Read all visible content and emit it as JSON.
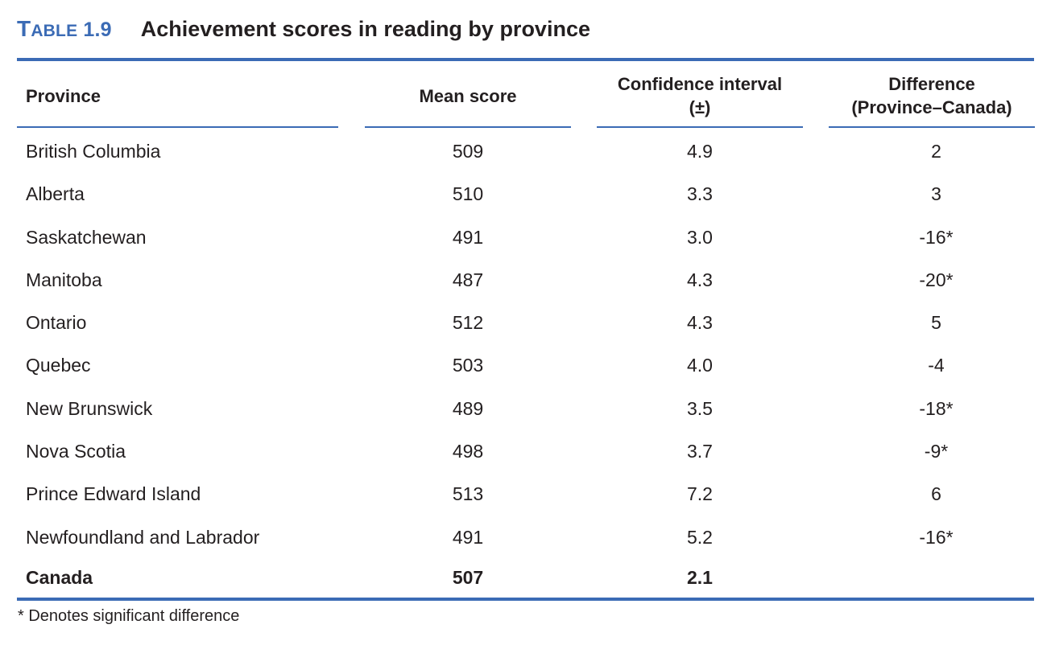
{
  "title": {
    "label_cap": "T",
    "label_rest": "ABLE",
    "number": " 1.9",
    "text": "Achievement scores in reading by province"
  },
  "columns": {
    "province": "Province",
    "mean": "Mean score",
    "ci_line1": "Confidence interval",
    "ci_line2": "(±)",
    "diff_line1": "Difference",
    "diff_line2": "(Province–Canada)"
  },
  "rows": [
    {
      "province": "British Columbia",
      "mean": "509",
      "ci": "4.9",
      "diff": "2"
    },
    {
      "province": "Alberta",
      "mean": "510",
      "ci": "3.3",
      "diff": "3"
    },
    {
      "province": "Saskatchewan",
      "mean": "491",
      "ci": "3.0",
      "diff": "-16*"
    },
    {
      "province": "Manitoba",
      "mean": "487",
      "ci": "4.3",
      "diff": "-20*"
    },
    {
      "province": "Ontario",
      "mean": "512",
      "ci": "4.3",
      "diff": "5"
    },
    {
      "province": "Quebec",
      "mean": "503",
      "ci": "4.0",
      "diff": "-4"
    },
    {
      "province": "New Brunswick",
      "mean": "489",
      "ci": "3.5",
      "diff": "-18*"
    },
    {
      "province": "Nova Scotia",
      "mean": "498",
      "ci": "3.7",
      "diff": "-9*"
    },
    {
      "province": "Prince Edward Island",
      "mean": "513",
      "ci": "7.2",
      "diff": "6"
    },
    {
      "province": "Newfoundland and Labrador",
      "mean": "491",
      "ci": "5.2",
      "diff": "-16*"
    }
  ],
  "total": {
    "province": "Canada",
    "mean": "507",
    "ci": "2.1",
    "diff": ""
  },
  "footnote": "* Denotes significant difference",
  "colors": {
    "accent": "#3b6bb5",
    "text": "#231f20"
  }
}
